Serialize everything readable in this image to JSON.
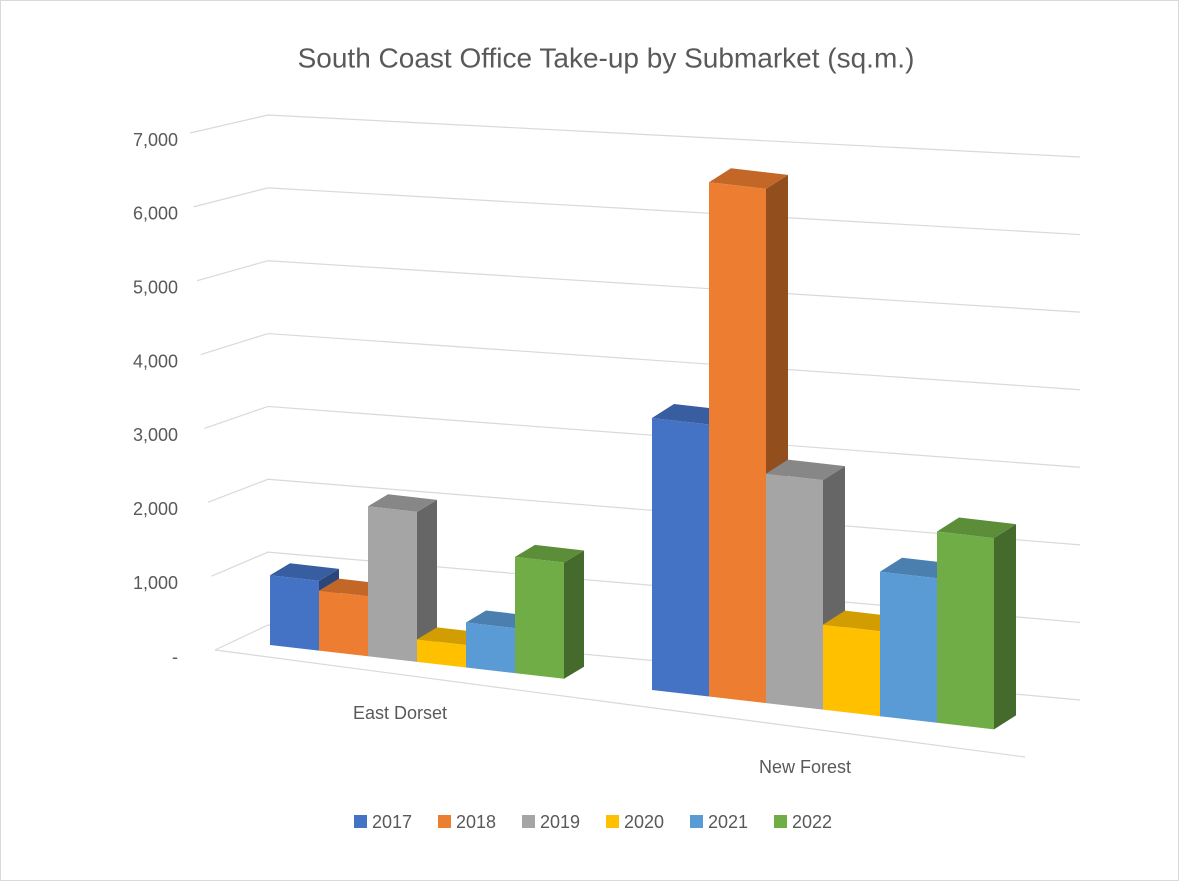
{
  "chart_data": {
    "type": "bar3d",
    "title": "South Coast Office Take-up by Submarket (sq.m.)",
    "categories": [
      "East Dorset",
      "New Forest"
    ],
    "series": [
      {
        "name": "2017",
        "color": "#4472c4",
        "values": [
          930,
          3200
        ]
      },
      {
        "name": "2018",
        "color": "#ed7d31",
        "values": [
          800,
          6050
        ]
      },
      {
        "name": "2019",
        "color": "#a5a5a5",
        "values": [
          2000,
          2700
        ]
      },
      {
        "name": "2020",
        "color": "#ffc000",
        "values": [
          300,
          1000
        ]
      },
      {
        "name": "2021",
        "color": "#5b9bd5",
        "values": [
          600,
          1700
        ]
      },
      {
        "name": "2022",
        "color": "#70ad47",
        "values": [
          1550,
          2250
        ]
      }
    ],
    "ylim": [
      0,
      7000
    ],
    "yticks": [
      {
        "value": 0,
        "label": "-"
      },
      {
        "value": 1000,
        "label": "1,000"
      },
      {
        "value": 2000,
        "label": "2,000"
      },
      {
        "value": 3000,
        "label": "3,000"
      },
      {
        "value": 4000,
        "label": "4,000"
      },
      {
        "value": 5000,
        "label": "5,000"
      },
      {
        "value": 6000,
        "label": "6,000"
      },
      {
        "value": 7000,
        "label": "7,000"
      }
    ],
    "grid": true,
    "legend": "bottom"
  }
}
